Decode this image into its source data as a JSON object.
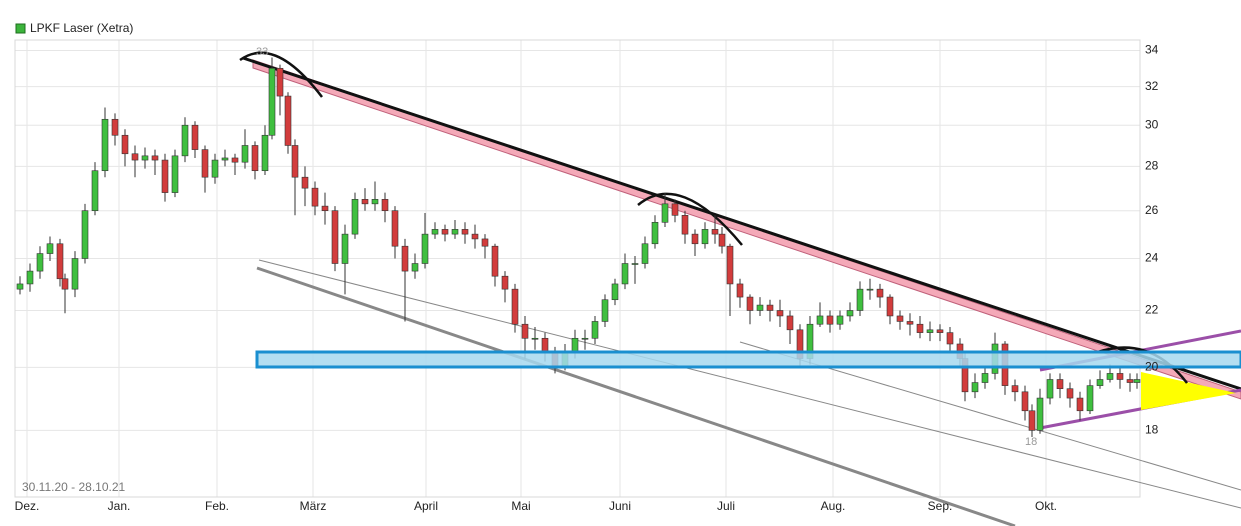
{
  "chart_data": {
    "type": "candlestick",
    "legend": "LPKF Laser (Xetra)",
    "legend_color": "#3cb43c",
    "date_range": "30.11.20 - 28.10.21",
    "annotations": [
      "33",
      "18"
    ],
    "up_color": "#3fbf3f",
    "down_color": "#d23c3c",
    "log_scale": true,
    "grid": true,
    "xlim": [
      -0.5,
      112
    ],
    "xticks": [
      {
        "value": 0.7,
        "label": "Dez."
      },
      {
        "value": 9.9,
        "label": "Jan."
      },
      {
        "value": 19.7,
        "label": "Feb."
      },
      {
        "value": 29.3,
        "label": "März"
      },
      {
        "value": 40.6,
        "label": "April"
      },
      {
        "value": 50.1,
        "label": "Mai"
      },
      {
        "value": 60,
        "label": "Juni"
      },
      {
        "value": 70.6,
        "label": "Juli"
      },
      {
        "value": 81.3,
        "label": "Aug."
      },
      {
        "value": 92,
        "label": "Sep."
      },
      {
        "value": 102.6,
        "label": "Okt."
      }
    ],
    "ylim": [
      16.1,
      34.6
    ],
    "yticks": [
      18,
      20,
      22,
      24,
      26,
      28,
      30,
      32,
      34
    ],
    "x": [
      0,
      1,
      2,
      3,
      4,
      4.5,
      5.5,
      6.5,
      7.5,
      8.5,
      9.5,
      10.5,
      11.5,
      12.5,
      13.5,
      14.5,
      15.5,
      16.5,
      17.5,
      18.5,
      19.5,
      20.5,
      21.5,
      22.5,
      23.5,
      24.5,
      25.2,
      26,
      26.8,
      27.5,
      28.5,
      29.5,
      30.5,
      31.5,
      32.5,
      33.5,
      34.5,
      35.5,
      36.5,
      37.5,
      38.5,
      39.5,
      40.5,
      41.5,
      42.5,
      43.5,
      44.5,
      45.5,
      46.5,
      47.5,
      48.5,
      49.5,
      50.5,
      51.5,
      52.5,
      53.5,
      54.5,
      55.5,
      56.5,
      57.5,
      58.5,
      59.5,
      60.5,
      61.5,
      62.5,
      63.5,
      64.5,
      65.5,
      66.5,
      67.5,
      68.5,
      69.5,
      70.2,
      71,
      72,
      73,
      74,
      75,
      76,
      77,
      78,
      79,
      80,
      81,
      82,
      83,
      84,
      85,
      86,
      87,
      88,
      89,
      90,
      91,
      92,
      93,
      94,
      94.5,
      95.5,
      96.5,
      97.5,
      98.5,
      99.5,
      100.5,
      101.2,
      102,
      103,
      104,
      105,
      106,
      107,
      108,
      109,
      110,
      111,
      111.7
    ],
    "open": [
      22.8,
      23.0,
      23.5,
      24.2,
      24.6,
      23.2,
      22.8,
      24.0,
      26.0,
      27.8,
      30.3,
      29.5,
      28.6,
      28.3,
      28.5,
      28.3,
      26.8,
      28.5,
      30.0,
      28.8,
      27.5,
      28.3,
      28.4,
      28.2,
      29.0,
      27.8,
      29.5,
      33.0,
      31.5,
      29.0,
      27.5,
      27.0,
      26.2,
      26.0,
      23.8,
      25.0,
      26.5,
      26.3,
      26.5,
      26.0,
      24.5,
      23.5,
      23.8,
      25.0,
      25.2,
      25.0,
      25.2,
      25.0,
      24.8,
      24.5,
      23.3,
      22.8,
      21.5,
      21.0,
      21.0,
      20.5,
      20.0,
      20.5,
      21.0,
      21.0,
      21.6,
      22.4,
      23.0,
      23.8,
      23.8,
      24.6,
      25.5,
      26.3,
      25.8,
      25.0,
      24.6,
      25.2,
      25.0,
      24.5,
      23.0,
      22.5,
      22.0,
      22.2,
      22.0,
      21.8,
      21.3,
      20.3,
      21.5,
      21.8,
      21.5,
      21.8,
      22.0,
      22.8,
      22.8,
      22.5,
      21.8,
      21.6,
      21.5,
      21.2,
      21.3,
      21.2,
      20.8,
      20.3,
      19.2,
      19.5,
      19.8,
      20.8,
      19.4,
      19.2,
      18.6,
      18.0,
      19.0,
      19.6,
      19.3,
      19.0,
      18.6,
      19.4,
      19.6,
      19.8,
      19.6,
      19.5
    ],
    "high": [
      23.3,
      23.8,
      24.5,
      24.9,
      24.8,
      23.4,
      24.3,
      26.3,
      28.2,
      30.9,
      30.6,
      29.8,
      29.0,
      28.9,
      28.8,
      28.6,
      28.8,
      30.4,
      30.2,
      29.0,
      28.6,
      28.8,
      28.6,
      29.8,
      29.2,
      30.0,
      33.6,
      33.2,
      31.7,
      29.3,
      28.0,
      27.3,
      26.8,
      26.2,
      25.4,
      26.8,
      27.0,
      27.3,
      26.8,
      26.2,
      24.8,
      24.2,
      25.9,
      25.5,
      25.4,
      25.6,
      25.5,
      25.4,
      25.0,
      24.6,
      23.5,
      23.0,
      21.8,
      21.4,
      21.2,
      20.7,
      20.8,
      21.3,
      21.3,
      21.8,
      22.6,
      23.2,
      24.2,
      24.1,
      24.9,
      25.8,
      26.8,
      26.5,
      26.0,
      25.2,
      25.5,
      25.8,
      25.3,
      24.6,
      23.2,
      22.6,
      22.5,
      22.4,
      22.4,
      22.0,
      21.5,
      21.8,
      22.3,
      22.0,
      22.0,
      22.3,
      23.1,
      23.2,
      23.0,
      22.6,
      22.0,
      21.9,
      21.8,
      21.6,
      21.5,
      21.4,
      21.0,
      20.5,
      19.8,
      20.0,
      21.2,
      20.9,
      19.6,
      19.4,
      18.8,
      19.3,
      19.8,
      19.8,
      19.5,
      19.2,
      19.6,
      19.9,
      20.1,
      20.0,
      19.8,
      19.8
    ],
    "low": [
      22.6,
      22.7,
      23.2,
      23.9,
      22.9,
      21.9,
      22.5,
      23.8,
      25.8,
      27.5,
      29.0,
      28.0,
      27.5,
      27.9,
      27.6,
      26.4,
      26.6,
      28.2,
      28.4,
      26.8,
      27.2,
      28.0,
      27.6,
      27.9,
      27.4,
      27.6,
      29.3,
      30.5,
      28.6,
      25.8,
      26.2,
      25.8,
      25.4,
      23.5,
      22.6,
      24.8,
      26.0,
      26.0,
      25.5,
      24.0,
      21.6,
      23.2,
      23.6,
      24.8,
      24.7,
      24.8,
      24.6,
      24.4,
      24.0,
      22.9,
      22.3,
      21.2,
      20.3,
      20.6,
      20.2,
      19.8,
      19.9,
      20.3,
      20.6,
      20.8,
      21.4,
      22.2,
      22.8,
      23.0,
      23.6,
      24.4,
      25.3,
      25.5,
      24.6,
      24.1,
      24.4,
      24.6,
      24.2,
      21.8,
      22.1,
      21.5,
      21.8,
      21.6,
      21.4,
      20.8,
      20.0,
      20.1,
      21.4,
      21.2,
      21.3,
      21.6,
      21.8,
      22.4,
      22.1,
      21.5,
      21.3,
      21.1,
      21.0,
      20.9,
      20.9,
      20.5,
      20.0,
      18.9,
      19.0,
      19.3,
      19.6,
      19.1,
      18.9,
      18.3,
      17.8,
      17.9,
      18.8,
      19.0,
      18.7,
      18.3,
      18.5,
      19.3,
      19.5,
      19.3,
      19.2,
      19.3
    ],
    "close": [
      23.0,
      23.5,
      24.2,
      24.6,
      23.2,
      22.8,
      24.0,
      26.0,
      27.8,
      30.3,
      29.5,
      28.6,
      28.3,
      28.5,
      28.3,
      26.8,
      28.5,
      30.0,
      28.8,
      27.5,
      28.3,
      28.4,
      28.2,
      29.0,
      27.8,
      29.5,
      33.0,
      31.5,
      29.0,
      27.5,
      27.0,
      26.2,
      26.0,
      23.8,
      25.0,
      26.5,
      26.3,
      26.5,
      26.0,
      24.5,
      23.5,
      23.8,
      25.0,
      25.2,
      25.0,
      25.2,
      25.0,
      24.8,
      24.5,
      23.3,
      22.8,
      21.5,
      21.0,
      21.0,
      20.5,
      20.0,
      20.5,
      21.0,
      21.0,
      21.6,
      22.4,
      23.0,
      23.8,
      23.8,
      24.6,
      25.5,
      26.3,
      25.8,
      25.0,
      24.6,
      25.2,
      25.0,
      24.5,
      23.0,
      22.5,
      22.0,
      22.2,
      22.0,
      21.8,
      21.3,
      20.3,
      21.5,
      21.8,
      21.5,
      21.8,
      22.0,
      22.8,
      22.8,
      22.5,
      21.8,
      21.6,
      21.5,
      21.2,
      21.3,
      21.2,
      20.8,
      20.3,
      19.2,
      19.5,
      19.8,
      20.8,
      19.4,
      19.2,
      18.6,
      18.0,
      19.0,
      19.6,
      19.3,
      19.0,
      18.6,
      19.4,
      19.6,
      19.8,
      19.6,
      19.5,
      19.6
    ]
  }
}
